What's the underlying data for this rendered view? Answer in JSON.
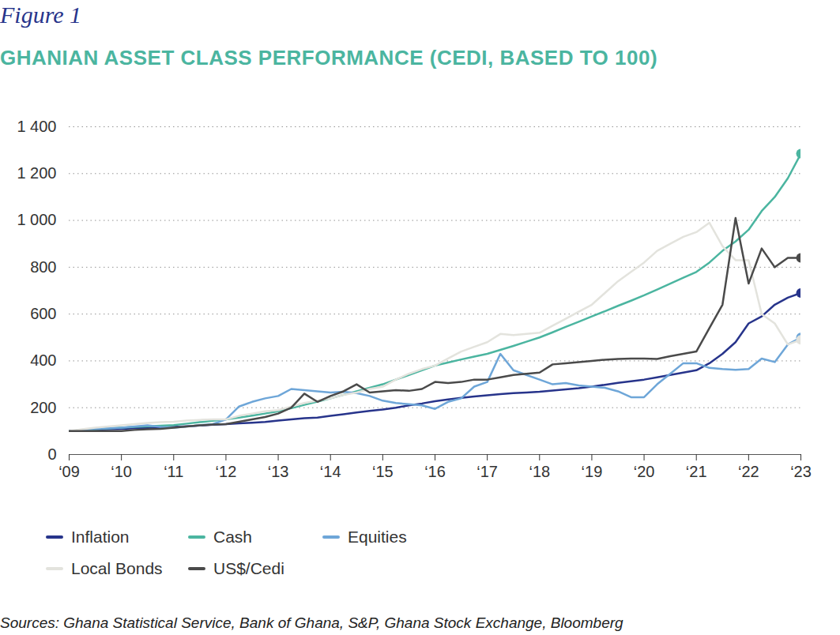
{
  "chart_data": {
    "type": "line",
    "title": "Figure 1",
    "subtitle": "GHANIAN ASSET CLASS PERFORMANCE (CEDI, BASED TO 100)",
    "caption": "Sources: Ghana Statistical Service, Bank of Ghana, S&P, Ghana Stock Exchange, Bloomberg",
    "x": [
      2009,
      2009.25,
      2009.5,
      2009.75,
      2010,
      2010.25,
      2010.5,
      2010.75,
      2011,
      2011.25,
      2011.5,
      2011.75,
      2012,
      2012.25,
      2012.5,
      2012.75,
      2013,
      2013.25,
      2013.5,
      2013.75,
      2014,
      2014.25,
      2014.5,
      2014.75,
      2015,
      2015.25,
      2015.5,
      2015.75,
      2016,
      2016.25,
      2016.5,
      2016.75,
      2017,
      2017.25,
      2017.5,
      2017.75,
      2018,
      2018.25,
      2018.5,
      2018.75,
      2019,
      2019.25,
      2019.5,
      2019.75,
      2020,
      2020.25,
      2020.5,
      2020.75,
      2021,
      2021.25,
      2021.5,
      2021.75,
      2022,
      2022.25,
      2022.5,
      2022.75,
      2023
    ],
    "series": [
      {
        "name": "Inflation",
        "color": "#27348b",
        "values": [
          100,
          103,
          106,
          108,
          110,
          112,
          114,
          116,
          118,
          121,
          124,
          127,
          130,
          133,
          136,
          139,
          145,
          150,
          155,
          158,
          165,
          172,
          180,
          186,
          192,
          200,
          210,
          218,
          228,
          235,
          242,
          248,
          253,
          258,
          262,
          265,
          268,
          273,
          278,
          283,
          290,
          298,
          306,
          313,
          320,
          330,
          340,
          350,
          360,
          390,
          430,
          480,
          560,
          590,
          640,
          670,
          690
        ]
      },
      {
        "name": "Cash",
        "color": "#4bb5a0",
        "values": [
          100,
          104,
          108,
          112,
          115,
          118,
          121,
          123,
          126,
          132,
          138,
          144,
          150,
          158,
          166,
          175,
          185,
          198,
          212,
          226,
          240,
          255,
          270,
          285,
          300,
          320,
          340,
          360,
          380,
          393,
          406,
          418,
          430,
          447,
          464,
          482,
          500,
          522,
          545,
          567,
          590,
          612,
          635,
          657,
          680,
          705,
          730,
          755,
          780,
          820,
          870,
          910,
          960,
          1040,
          1100,
          1180,
          1285
        ]
      },
      {
        "name": "Equities",
        "color": "#6ea6d8",
        "values": [
          100,
          105,
          110,
          112,
          115,
          120,
          125,
          118,
          115,
          120,
          125,
          130,
          150,
          205,
          225,
          240,
          250,
          280,
          275,
          270,
          265,
          268,
          262,
          250,
          230,
          220,
          215,
          210,
          195,
          225,
          240,
          290,
          310,
          430,
          360,
          340,
          320,
          300,
          305,
          295,
          290,
          285,
          270,
          245,
          245,
          300,
          345,
          390,
          390,
          370,
          365,
          362,
          365,
          410,
          395,
          470,
          500
        ]
      },
      {
        "name": "Local Bonds",
        "color": "#e3e3dd",
        "values": [
          100,
          108,
          115,
          120,
          125,
          130,
          135,
          138,
          140,
          145,
          148,
          150,
          150,
          165,
          175,
          185,
          190,
          205,
          220,
          230,
          240,
          255,
          265,
          280,
          290,
          320,
          345,
          365,
          380,
          410,
          440,
          460,
          480,
          515,
          510,
          515,
          520,
          550,
          580,
          610,
          640,
          690,
          740,
          780,
          820,
          870,
          900,
          930,
          950,
          990,
          890,
          830,
          830,
          600,
          560,
          470,
          490
        ]
      },
      {
        "name": "US$/Cedi",
        "color": "#4a4a4a",
        "values": [
          100,
          100,
          100,
          100,
          100,
          105,
          108,
          110,
          115,
          120,
          125,
          128,
          130,
          140,
          150,
          160,
          175,
          200,
          260,
          225,
          250,
          270,
          300,
          265,
          270,
          275,
          272,
          280,
          310,
          305,
          310,
          320,
          320,
          330,
          340,
          345,
          350,
          385,
          390,
          395,
          400,
          405,
          408,
          410,
          410,
          408,
          420,
          430,
          440,
          540,
          640,
          1010,
          730,
          880,
          800,
          840,
          840
        ]
      }
    ],
    "xlim": [
      2009,
      2023
    ],
    "xticks": [
      {
        "value": 2009,
        "label": "‘09"
      },
      {
        "value": 2010,
        "label": "‘10"
      },
      {
        "value": 2011,
        "label": "‘11"
      },
      {
        "value": 2012,
        "label": "‘12"
      },
      {
        "value": 2013,
        "label": "‘13"
      },
      {
        "value": 2014,
        "label": "‘14"
      },
      {
        "value": 2015,
        "label": "‘15"
      },
      {
        "value": 2016,
        "label": "‘16"
      },
      {
        "value": 2017,
        "label": "‘17"
      },
      {
        "value": 2018,
        "label": "‘18"
      },
      {
        "value": 2019,
        "label": "‘19"
      },
      {
        "value": 2020,
        "label": "‘20"
      },
      {
        "value": 2021,
        "label": "‘21"
      },
      {
        "value": 2022,
        "label": "‘22"
      },
      {
        "value": 2023,
        "label": "‘23"
      }
    ],
    "ylim": [
      0,
      1400
    ],
    "yticks": [
      0,
      200,
      400,
      600,
      800,
      {
        "value": 1000,
        "label": "1 000"
      },
      {
        "value": 1200,
        "label": "1 200"
      },
      {
        "value": 1400,
        "label": "1 400"
      }
    ],
    "grid": true,
    "legend": "bottom"
  }
}
